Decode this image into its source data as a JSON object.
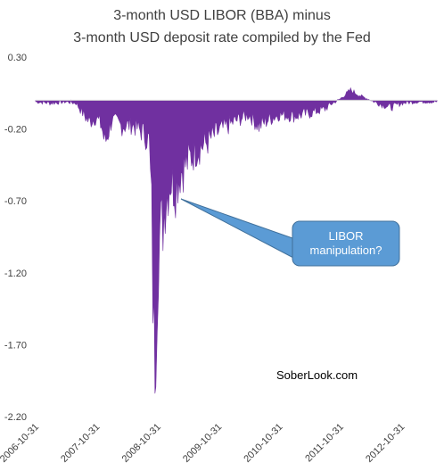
{
  "chart_data": {
    "type": "area",
    "title": "3-month USD LIBOR (BBA) minus",
    "subtitle": "3-month USD deposit rate compiled by the Fed",
    "xlabel": "",
    "ylabel": "",
    "ylim": [
      -2.2,
      0.3
    ],
    "y_ticks": [
      "0.30",
      "-0.20",
      "-0.70",
      "-1.20",
      "-1.70",
      "-2.20"
    ],
    "x_ticks": [
      "2006-10-31",
      "2007-10-31",
      "2008-10-31",
      "2009-10-31",
      "2010-10-31",
      "2011-10-31",
      "2012-10-31"
    ],
    "x_range": [
      "2006-10-31",
      "2013-05-31"
    ],
    "grid": false,
    "series_color": "#7030a0",
    "points": [
      [
        "2006-10-31",
        -0.01
      ],
      [
        "2007-01-31",
        -0.02
      ],
      [
        "2007-04-30",
        -0.01
      ],
      [
        "2007-06-30",
        -0.02
      ],
      [
        "2007-08-15",
        -0.1
      ],
      [
        "2007-09-15",
        -0.15
      ],
      [
        "2007-10-31",
        -0.12
      ],
      [
        "2007-11-30",
        -0.18
      ],
      [
        "2007-12-20",
        -0.3
      ],
      [
        "2008-01-31",
        -0.14
      ],
      [
        "2008-03-31",
        -0.18
      ],
      [
        "2008-05-31",
        -0.17
      ],
      [
        "2008-07-31",
        -0.22
      ],
      [
        "2008-09-10",
        -0.28
      ],
      [
        "2008-09-25",
        -0.8
      ],
      [
        "2008-10-10",
        -1.8
      ],
      [
        "2008-10-20",
        -1.5
      ],
      [
        "2008-11-05",
        -1.0
      ],
      [
        "2008-11-25",
        -0.9
      ],
      [
        "2008-12-15",
        -0.7
      ],
      [
        "2009-01-15",
        -0.55
      ],
      [
        "2009-02-15",
        -0.6
      ],
      [
        "2009-03-15",
        -0.5
      ],
      [
        "2009-04-15",
        -0.45
      ],
      [
        "2009-06-15",
        -0.35
      ],
      [
        "2009-08-15",
        -0.3
      ],
      [
        "2009-10-31",
        -0.22
      ],
      [
        "2010-01-31",
        -0.15
      ],
      [
        "2010-04-30",
        -0.1
      ],
      [
        "2010-06-30",
        -0.18
      ],
      [
        "2010-08-31",
        -0.13
      ],
      [
        "2010-10-31",
        -0.1
      ],
      [
        "2011-01-31",
        -0.11
      ],
      [
        "2011-04-30",
        -0.09
      ],
      [
        "2011-07-31",
        -0.06
      ],
      [
        "2011-08-31",
        -0.03
      ],
      [
        "2011-10-31",
        0.01
      ],
      [
        "2011-12-31",
        0.07
      ],
      [
        "2012-02-29",
        0.03
      ],
      [
        "2012-04-30",
        0.0
      ],
      [
        "2012-06-30",
        -0.03
      ],
      [
        "2012-08-31",
        -0.05
      ],
      [
        "2012-10-31",
        -0.02
      ],
      [
        "2013-01-31",
        -0.01
      ],
      [
        "2013-05-31",
        -0.01
      ]
    ],
    "annotation": "LIBOR manipulation?",
    "watermark": "SoberLook.com"
  }
}
